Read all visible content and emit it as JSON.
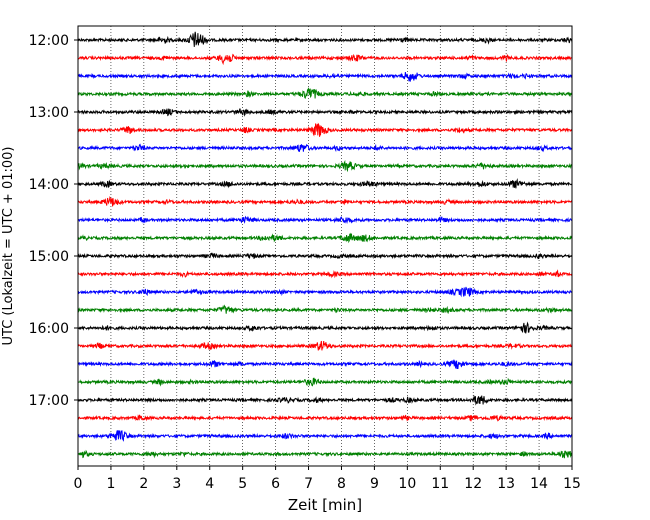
{
  "chart_data": {
    "type": "line",
    "title": "",
    "xlabel": "Zeit  [min]",
    "ylabel": "UTC (Lokalzeit = UTC + 01:00)",
    "xlim": [
      0,
      15
    ],
    "x_ticks": [
      "0",
      "1",
      "2",
      "3",
      "4",
      "5",
      "6",
      "7",
      "8",
      "9",
      "10",
      "11",
      "12",
      "13",
      "14",
      "15"
    ],
    "y_ticks": [
      "12:00",
      "13:00",
      "14:00",
      "15:00",
      "16:00",
      "17:00"
    ],
    "trace_start": "12:00",
    "trace_interval_min": 15,
    "trace_count": 24,
    "trace_colors": [
      "#000000",
      "#ff0000",
      "#0000ff",
      "#008000"
    ],
    "grid": "vertical dotted",
    "events": [
      {
        "trace": 0,
        "t": 3.6,
        "amp": 1.9
      },
      {
        "trace": 1,
        "t": 4.5,
        "amp": 1.2
      },
      {
        "trace": 2,
        "t": 10.1,
        "amp": 1.1
      },
      {
        "trace": 3,
        "t": 7.0,
        "amp": 1.0
      },
      {
        "trace": 5,
        "t": 7.3,
        "amp": 1.5
      },
      {
        "trace": 6,
        "t": 6.8,
        "amp": 0.8
      },
      {
        "trace": 7,
        "t": 8.2,
        "amp": 0.9
      },
      {
        "trace": 8,
        "t": 13.3,
        "amp": 0.8
      },
      {
        "trace": 9,
        "t": 1.0,
        "amp": 0.9
      },
      {
        "trace": 11,
        "t": 8.2,
        "amp": 0.8
      },
      {
        "trace": 14,
        "t": 11.8,
        "amp": 1.0
      },
      {
        "trace": 15,
        "t": 4.5,
        "amp": 0.8
      },
      {
        "trace": 16,
        "t": 13.6,
        "amp": 1.0
      },
      {
        "trace": 17,
        "t": 7.4,
        "amp": 1.0
      },
      {
        "trace": 18,
        "t": 11.5,
        "amp": 0.9
      },
      {
        "trace": 19,
        "t": 7.1,
        "amp": 0.7
      },
      {
        "trace": 20,
        "t": 12.2,
        "amp": 1.0
      },
      {
        "trace": 22,
        "t": 1.2,
        "amp": 1.0
      },
      {
        "trace": 23,
        "t": 14.8,
        "amp": 0.8
      }
    ]
  }
}
